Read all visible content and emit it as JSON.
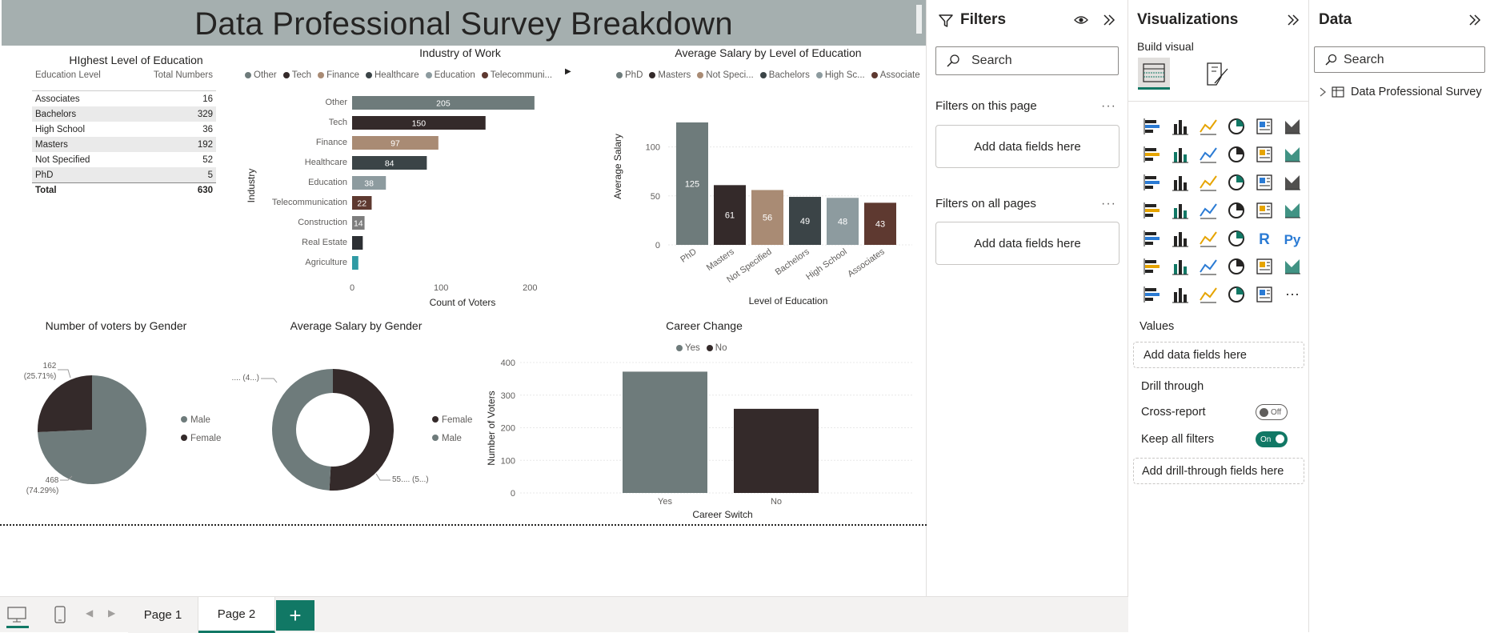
{
  "report": {
    "title": "Data Professional Survey Breakdown"
  },
  "education_table": {
    "title": "HIghest Level of Education",
    "col1": "Education Level",
    "col2": "Total Numbers",
    "rows": [
      {
        "level": "Associates",
        "total": "16"
      },
      {
        "level": "Bachelors",
        "total": "329"
      },
      {
        "level": "High School",
        "total": "36"
      },
      {
        "level": "Masters",
        "total": "192"
      },
      {
        "level": "Not Specified",
        "total": "52"
      },
      {
        "level": "PhD",
        "total": "5"
      }
    ],
    "total_label": "Total",
    "total_value": "630"
  },
  "chart_data": [
    {
      "type": "bar",
      "orientation": "horizontal",
      "title": "Industry of Work",
      "xlabel": "Count of Voters",
      "ylabel": "Industry",
      "categories": [
        "Other",
        "Tech",
        "Finance",
        "Healthcare",
        "Education",
        "Telecommunication",
        "Construction",
        "Real Estate",
        "Agriculture"
      ],
      "values": [
        205,
        150,
        97,
        84,
        38,
        22,
        14,
        12,
        7
      ],
      "data_labels": [
        "205",
        "150",
        "97",
        "84",
        "38",
        "22",
        "14",
        "",
        ""
      ],
      "xlim": [
        0,
        215
      ],
      "xticks": [
        "0",
        "100",
        "200"
      ],
      "legend": [
        "Other",
        "Tech",
        "Finance",
        "Healthcare",
        "Education",
        "Telecommuni..."
      ],
      "colors": [
        "#6e7b7b",
        "#342a2a",
        "#a98b74",
        "#3b4447",
        "#8d9b9f",
        "#5e3930",
        "#7d7d7d",
        "#2c2f33",
        "#2f9aa4"
      ]
    },
    {
      "type": "bar",
      "orientation": "vertical",
      "title": "Average Salary by Level of Education",
      "xlabel": "Level of Education",
      "ylabel": "Average Salary",
      "categories": [
        "PhD",
        "Masters",
        "Not Specified",
        "Bachelors",
        "High School",
        "Associates"
      ],
      "values": [
        125,
        61,
        56,
        49,
        48,
        43
      ],
      "ylim": [
        0,
        135
      ],
      "yticks": [
        "0",
        "50",
        "100"
      ],
      "legend": [
        "PhD",
        "Masters",
        "Not Speci...",
        "Bachelors",
        "High Sc...",
        "Associates"
      ],
      "colors": [
        "#6e7b7b",
        "#342a2a",
        "#a98b74",
        "#3b4447",
        "#8d9b9f",
        "#5e3930"
      ]
    },
    {
      "type": "pie",
      "title": "Number of voters by Gender",
      "categories": [
        "Male",
        "Female"
      ],
      "values": [
        468,
        162
      ],
      "labels": [
        "468",
        "162"
      ],
      "percent_labels": [
        "(74.29%)",
        "(25.71%)"
      ],
      "legend": [
        "Male",
        "Female"
      ],
      "colors": [
        "#6e7b7b",
        "#342a2a"
      ]
    },
    {
      "type": "donut",
      "title": "Average Salary by Gender",
      "categories": [
        "Female",
        "Male"
      ],
      "values": [
        55,
        53
      ],
      "labels": [
        "55.... (5...)",
        "53.... (4...)"
      ],
      "legend": [
        "Female",
        "Male"
      ],
      "colors": [
        "#342a2a",
        "#6e7b7b"
      ]
    },
    {
      "type": "bar",
      "orientation": "vertical",
      "title": "Career Change",
      "xlabel": "Career Switch",
      "ylabel": "Number of Voters",
      "categories": [
        "Yes",
        "No"
      ],
      "values": [
        372,
        258
      ],
      "ylim": [
        0,
        400
      ],
      "yticks": [
        "0",
        "100",
        "200",
        "300",
        "400"
      ],
      "legend": [
        "Yes",
        "No"
      ],
      "colors": [
        "#6e7b7b",
        "#342a2a"
      ]
    }
  ],
  "filters": {
    "title": "Filters",
    "search_placeholder": "Search",
    "on_page_label": "Filters on this page",
    "on_all_label": "Filters on all pages",
    "add_fields": "Add data fields here"
  },
  "visualizations": {
    "title": "Visualizations",
    "build_visual": "Build visual",
    "values_label": "Values",
    "add_fields": "Add data fields here",
    "drill_through": "Drill through",
    "cross_report": "Cross-report",
    "cross_report_state": "Off",
    "keep_filters": "Keep all filters",
    "keep_filters_state": "On",
    "add_drill": "Add drill-through fields here",
    "icons": [
      "stacked-bar-icon",
      "clustered-column-icon",
      "clustered-bar-icon",
      "stacked-column-icon",
      "100-bar-icon",
      "100-column-icon",
      "line-chart-icon",
      "area-chart-icon",
      "stacked-area-icon",
      "line-column-icon",
      "line-stacked-column-icon",
      "ribbon-chart-icon",
      "waterfall-icon",
      "funnel-icon",
      "scatter-icon",
      "pie-chart-icon",
      "donut-chart-icon",
      "treemap-icon",
      "map-icon",
      "filled-map-icon",
      "azure-map-icon",
      "gauge-icon",
      "card-icon",
      "multi-row-card-icon",
      "kpi-icon",
      "slicer-icon",
      "table-icon",
      "matrix-icon",
      "r-visual-icon",
      "python-visual-icon",
      "key-influencers-icon",
      "decomposition-tree-icon",
      "qna-icon",
      "smart-narrative-icon",
      "metrics-icon",
      "paginated-report-icon",
      "power-apps-icon",
      "power-automate-icon",
      "arcgis-icon",
      "diamond-icon",
      "chevron-visual-icon",
      "more-visuals-icon"
    ]
  },
  "data_pane": {
    "title": "Data",
    "search_placeholder": "Search",
    "table_name": "Data Professional Survey"
  },
  "pages": {
    "tabs": [
      "Page 1",
      "Page 2"
    ],
    "active": "Page 2",
    "add": "+"
  }
}
